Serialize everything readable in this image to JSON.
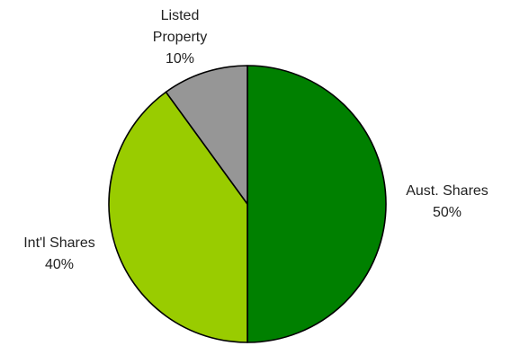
{
  "chart_data": {
    "type": "pie",
    "title": "",
    "slices": [
      {
        "label": "Aust. Shares",
        "label_lines": [
          "Aust. Shares"
        ],
        "value": 50,
        "value_text": "50%",
        "color": "#008000"
      },
      {
        "label": "Int'l Shares",
        "label_lines": [
          "Int'l Shares"
        ],
        "value": 40,
        "value_text": "40%",
        "color": "#99cc00"
      },
      {
        "label": "Listed Property",
        "label_lines": [
          "Listed",
          "Property"
        ],
        "value": 10,
        "value_text": "10%",
        "color": "#969696"
      }
    ],
    "start_angle_deg": 0,
    "direction": "clockwise",
    "legend": "none"
  }
}
